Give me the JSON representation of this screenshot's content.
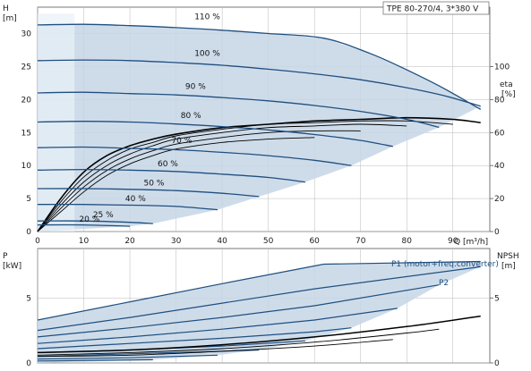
{
  "header": {
    "model_box": "TPE 80-270/4, 3*380 V"
  },
  "chart_data": [
    {
      "type": "line",
      "panel": "head-efficiency",
      "ylabel": "H",
      "yunit": "[m]",
      "y2label": "eta",
      "y2unit": "[%]",
      "xunit": "Q [m³/h]",
      "xlim": [
        0,
        98
      ],
      "ylim": [
        0,
        34
      ],
      "y2lim": [
        0,
        136
      ],
      "xticks": [
        0,
        10,
        20,
        30,
        40,
        50,
        60,
        70,
        80,
        90
      ],
      "yticks": [
        0,
        5,
        10,
        15,
        20,
        25,
        30
      ],
      "y2ticks": [
        0,
        20,
        40,
        60,
        80,
        100
      ],
      "grid": true,
      "colors": {
        "curve": "#1f4f7f",
        "envelope": "#c5d6e6",
        "efficiency": "#000000",
        "grid": "#b8b8b8"
      },
      "speed_curves": [
        {
          "name": "110 %",
          "x": [
            0,
            10,
            20,
            30,
            40,
            50,
            62,
            72,
            80,
            88,
            96
          ],
          "y": [
            31.3,
            31.4,
            31.2,
            30.9,
            30.5,
            30.0,
            29.3,
            27.0,
            24.5,
            21.7,
            18.5
          ]
        },
        {
          "name": "100 %",
          "x": [
            0,
            10,
            20,
            30,
            40,
            50,
            60,
            70,
            80,
            88,
            96
          ],
          "y": [
            25.9,
            26.0,
            25.9,
            25.6,
            25.2,
            24.6,
            23.9,
            23.0,
            21.8,
            20.6,
            19.0
          ]
        },
        {
          "name": "90 %",
          "x": [
            0,
            10,
            20,
            30,
            40,
            50,
            60,
            70,
            80,
            87
          ],
          "y": [
            21.0,
            21.1,
            20.9,
            20.7,
            20.3,
            19.8,
            19.1,
            18.2,
            17.0,
            15.8
          ]
        },
        {
          "name": "80 %",
          "x": [
            0,
            10,
            20,
            30,
            40,
            50,
            60,
            70,
            77
          ],
          "y": [
            16.6,
            16.7,
            16.6,
            16.3,
            15.9,
            15.4,
            14.7,
            13.8,
            12.9
          ]
        },
        {
          "name": "70 %",
          "x": [
            0,
            10,
            20,
            30,
            40,
            50,
            60,
            68
          ],
          "y": [
            12.7,
            12.8,
            12.6,
            12.4,
            12.0,
            11.5,
            10.8,
            10.0
          ]
        },
        {
          "name": "60 %",
          "x": [
            0,
            10,
            20,
            30,
            40,
            50,
            58
          ],
          "y": [
            9.3,
            9.4,
            9.3,
            9.1,
            8.7,
            8.2,
            7.5
          ]
        },
        {
          "name": "50 %",
          "x": [
            0,
            10,
            20,
            30,
            40,
            48
          ],
          "y": [
            6.5,
            6.5,
            6.4,
            6.2,
            5.8,
            5.3
          ]
        },
        {
          "name": "40 %",
          "x": [
            0,
            10,
            20,
            30,
            39
          ],
          "y": [
            4.1,
            4.1,
            4.0,
            3.8,
            3.3
          ]
        },
        {
          "name": "25 %",
          "x": [
            0,
            10,
            20,
            25
          ],
          "y": [
            1.6,
            1.6,
            1.4,
            1.2
          ]
        },
        {
          "name": "20 %",
          "x": [
            0,
            10,
            20
          ],
          "y": [
            1.0,
            1.0,
            0.8
          ]
        }
      ],
      "speed_labels": [
        {
          "text": "110 %",
          "x": 34,
          "y": 32.2
        },
        {
          "text": "100 %",
          "x": 34,
          "y": 26.6
        },
        {
          "text": "90 %",
          "x": 32,
          "y": 21.6
        },
        {
          "text": "80 %",
          "x": 31,
          "y": 17.2
        },
        {
          "text": "70 %",
          "x": 29,
          "y": 13.4
        },
        {
          "text": "60 %",
          "x": 26,
          "y": 9.9
        },
        {
          "text": "50 %",
          "x": 23,
          "y": 7.0
        },
        {
          "text": "40 %",
          "x": 19,
          "y": 4.6
        },
        {
          "text": "25 %",
          "x": 12,
          "y": 2.2
        },
        {
          "text": "20 %",
          "x": 9,
          "y": 1.5
        }
      ],
      "efficiency_curves": {
        "x": [
          0,
          5,
          10,
          15,
          20,
          25,
          30,
          40,
          50,
          60,
          70,
          80,
          90,
          96
        ],
        "eta": [
          [
            0,
            20,
            36,
            46,
            52,
            56,
            59,
            63,
            65,
            67,
            68,
            69,
            68,
            66
          ],
          [
            0,
            18,
            33,
            43,
            50,
            54,
            58,
            62,
            65,
            66,
            67,
            67,
            65
          ],
          [
            0,
            16,
            30,
            40,
            47,
            52,
            56,
            60,
            63,
            64,
            65,
            64
          ],
          [
            0,
            14,
            27,
            37,
            44,
            49,
            53,
            57,
            60,
            61,
            61
          ],
          [
            0,
            12,
            24,
            34,
            41,
            46,
            50,
            54,
            56,
            57
          ]
        ]
      }
    },
    {
      "type": "line",
      "panel": "power-npsh",
      "ylabel": "P",
      "yunit": "[kW]",
      "y2label": "NPSH",
      "y2unit": "[m]",
      "xlim": [
        0,
        98
      ],
      "ylim": [
        0,
        8.8
      ],
      "yticks": [
        0,
        5
      ],
      "y2ticks": [
        0,
        5
      ],
      "grid": true,
      "legend": [
        "P1 (motor+freq.converter)",
        "P2"
      ],
      "colors": {
        "curve": "#1f4f7f",
        "envelope": "#c5d6e6",
        "npsh": "#000000"
      },
      "p1_curves": [
        {
          "x": [
            0,
            20,
            40,
            62,
            96
          ],
          "y": [
            3.3,
            4.7,
            6.1,
            7.6,
            7.8
          ]
        },
        {
          "x": [
            0,
            20,
            40,
            60,
            96
          ],
          "y": [
            2.5,
            3.5,
            4.6,
            5.7,
            7.4
          ]
        },
        {
          "x": [
            0,
            20,
            40,
            60,
            87
          ],
          "y": [
            2.0,
            2.7,
            3.5,
            4.4,
            6.0
          ]
        },
        {
          "x": [
            0,
            20,
            40,
            60,
            78
          ],
          "y": [
            1.5,
            2.0,
            2.6,
            3.3,
            4.2
          ]
        },
        {
          "x": [
            0,
            20,
            40,
            60,
            68
          ],
          "y": [
            1.1,
            1.5,
            1.9,
            2.4,
            2.7
          ]
        },
        {
          "x": [
            0,
            20,
            40,
            58
          ],
          "y": [
            0.8,
            1.0,
            1.3,
            1.7
          ]
        },
        {
          "x": [
            0,
            20,
            40,
            48
          ],
          "y": [
            0.5,
            0.7,
            0.9,
            1.0
          ]
        },
        {
          "x": [
            0,
            20,
            39
          ],
          "y": [
            0.3,
            0.4,
            0.6
          ]
        },
        {
          "x": [
            0,
            25
          ],
          "y": [
            0.15,
            0.25
          ]
        }
      ],
      "npsh_curves": [
        {
          "x": [
            0,
            20,
            40,
            60,
            80,
            96
          ],
          "y": [
            0.8,
            1.0,
            1.4,
            2.0,
            2.8,
            3.6
          ]
        },
        {
          "x": [
            0,
            20,
            40,
            60,
            80,
            87
          ],
          "y": [
            0.6,
            0.8,
            1.1,
            1.6,
            2.3,
            2.6
          ]
        },
        {
          "x": [
            0,
            20,
            40,
            60,
            77
          ],
          "y": [
            0.5,
            0.6,
            0.9,
            1.3,
            1.8
          ]
        }
      ]
    }
  ]
}
